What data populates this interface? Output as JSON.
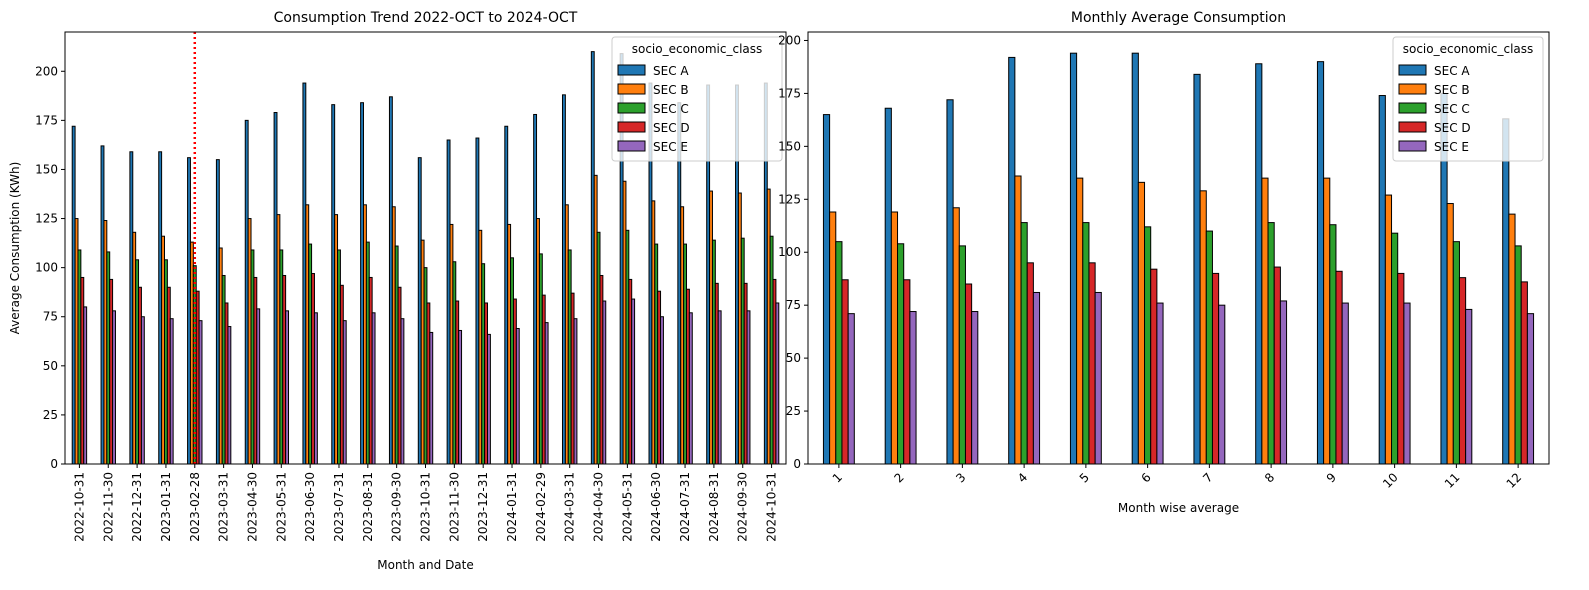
{
  "chart_data": [
    {
      "type": "bar",
      "title": "Consumption Trend 2022-OCT to 2024-OCT",
      "xlabel": "Month and Date",
      "ylabel": "Average Consumption (KWh)",
      "ylim": [
        0,
        220
      ],
      "yticks": [
        0,
        25,
        50,
        75,
        100,
        125,
        150,
        175,
        200
      ],
      "xtick_rotation": 90,
      "categories": [
        "2022-10-31",
        "2022-11-30",
        "2022-12-31",
        "2023-01-31",
        "2023-02-28",
        "2023-03-31",
        "2023-04-30",
        "2023-05-31",
        "2023-06-30",
        "2023-07-31",
        "2023-08-31",
        "2023-09-30",
        "2023-10-31",
        "2023-11-30",
        "2023-12-31",
        "2024-01-31",
        "2024-02-29",
        "2024-03-31",
        "2024-04-30",
        "2024-05-31",
        "2024-06-30",
        "2024-07-31",
        "2024-08-31",
        "2024-09-30",
        "2024-10-31"
      ],
      "legend": {
        "title": "socio_economic_class",
        "placement": "top-right"
      },
      "reference_line": {
        "category": "2023-02-28",
        "color": "#ff0000",
        "style": "dotted"
      },
      "series": [
        {
          "name": "SEC A",
          "color": "#1f77b4",
          "values": [
            172,
            162,
            159,
            159,
            156,
            155,
            175,
            179,
            194,
            183,
            184,
            187,
            156,
            165,
            166,
            172,
            178,
            188,
            210,
            209,
            194,
            184,
            193,
            193,
            194
          ]
        },
        {
          "name": "SEC B",
          "color": "#ff7f0e",
          "values": [
            125,
            124,
            118,
            116,
            113,
            110,
            125,
            127,
            132,
            127,
            132,
            131,
            114,
            122,
            119,
            122,
            125,
            132,
            147,
            144,
            134,
            131,
            139,
            138,
            140
          ]
        },
        {
          "name": "SEC C",
          "color": "#2ca02c",
          "values": [
            109,
            108,
            104,
            104,
            101,
            96,
            109,
            109,
            112,
            109,
            113,
            111,
            100,
            103,
            102,
            105,
            107,
            109,
            118,
            119,
            112,
            112,
            114,
            115,
            116
          ]
        },
        {
          "name": "SEC D",
          "color": "#d62728",
          "values": [
            95,
            94,
            90,
            90,
            88,
            82,
            95,
            96,
            97,
            91,
            95,
            90,
            82,
            83,
            82,
            84,
            86,
            87,
            96,
            94,
            88,
            89,
            92,
            92,
            94
          ]
        },
        {
          "name": "SEC E",
          "color": "#9467bd",
          "values": [
            80,
            78,
            75,
            74,
            73,
            70,
            79,
            78,
            77,
            73,
            77,
            74,
            67,
            68,
            66,
            69,
            72,
            74,
            83,
            84,
            75,
            77,
            78,
            78,
            82
          ]
        }
      ]
    },
    {
      "type": "bar",
      "title": "Monthly Average Consumption",
      "xlabel": "Month wise average",
      "ylabel": "",
      "ylim": [
        0,
        204
      ],
      "yticks": [
        0,
        25,
        50,
        75,
        100,
        125,
        150,
        175,
        200
      ],
      "xtick_rotation": 45,
      "categories": [
        "1",
        "2",
        "3",
        "4",
        "5",
        "6",
        "7",
        "8",
        "9",
        "10",
        "11",
        "12"
      ],
      "legend": {
        "title": "socio_economic_class",
        "placement": "top-right"
      },
      "series": [
        {
          "name": "SEC A",
          "color": "#1f77b4",
          "values": [
            165,
            168,
            172,
            192,
            194,
            194,
            184,
            189,
            190,
            174,
            175,
            163
          ]
        },
        {
          "name": "SEC B",
          "color": "#ff7f0e",
          "values": [
            119,
            119,
            121,
            136,
            135,
            133,
            129,
            135,
            135,
            127,
            123,
            118
          ]
        },
        {
          "name": "SEC C",
          "color": "#2ca02c",
          "values": [
            105,
            104,
            103,
            114,
            114,
            112,
            110,
            114,
            113,
            109,
            105,
            103
          ]
        },
        {
          "name": "SEC D",
          "color": "#d62728",
          "values": [
            87,
            87,
            85,
            95,
            95,
            92,
            90,
            93,
            91,
            90,
            88,
            86
          ]
        },
        {
          "name": "SEC E",
          "color": "#9467bd",
          "values": [
            71,
            72,
            72,
            81,
            81,
            76,
            75,
            77,
            76,
            76,
            73,
            71
          ]
        }
      ]
    }
  ]
}
